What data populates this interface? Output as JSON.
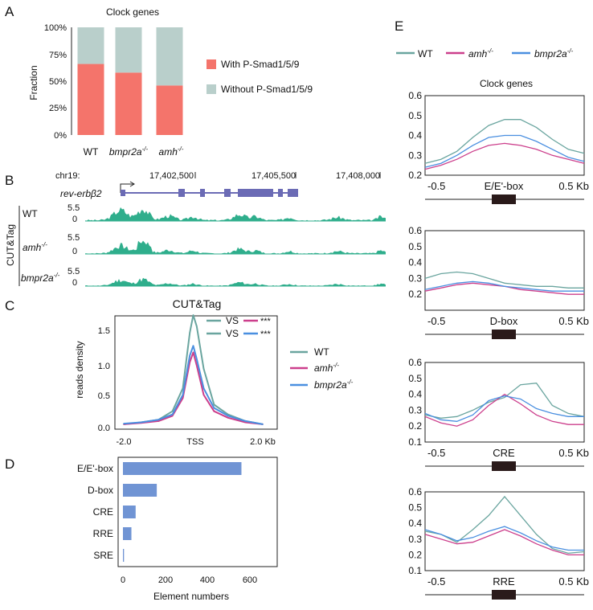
{
  "colors": {
    "wt": "#6aa59f",
    "amh": "#cc3f8c",
    "bmpr": "#4a8fe0",
    "with": "#f4746b",
    "without": "#b9cfcb",
    "cut": "#2fae8c",
    "gene": "#6b6bb5",
    "bar": "#7094d4"
  },
  "panelA": {
    "letter": "A",
    "title": "Clock genes",
    "ylabel": "Fraction",
    "yticks": [
      "0%",
      "25%",
      "50%",
      "75%",
      "100%"
    ],
    "categories": [
      "WT",
      "bmpr2a",
      "amh"
    ],
    "with_label": "With P-Smad1/5/9",
    "without_label": "Without P-Smad1/5/9"
  },
  "panelB": {
    "letter": "B",
    "chrom": "chr19:",
    "pos": [
      "17,402,500",
      "17,405,500",
      "17,408,000"
    ],
    "gene": "rev-erbβ2",
    "vertical": "CUT&Tag",
    "tracks": [
      {
        "label": "WT",
        "max": "5.5",
        "min": "0"
      },
      {
        "label": "amh",
        "max": "5.5",
        "min": "0"
      },
      {
        "label": "bmpr2a",
        "max": "5.5",
        "min": "0"
      }
    ]
  },
  "panelC": {
    "letter": "C",
    "title": "CUT&Tag",
    "ylabel": "reads density",
    "xticks": [
      "-2.0",
      "TSS",
      "2.0 Kb"
    ],
    "yticks": [
      "0.0",
      "0.5",
      "1.0",
      "1.5"
    ],
    "vs": "VS",
    "sig": "***",
    "legend": [
      "WT",
      "amh",
      "bmpr2a"
    ]
  },
  "panelD": {
    "letter": "D",
    "xlabel": "Element numbers",
    "xticks": [
      "0",
      "200",
      "400",
      "600"
    ]
  },
  "panelE": {
    "letter": "E",
    "legend": [
      "WT",
      "amh",
      "bmpr2a"
    ],
    "title": "Clock genes",
    "xleft": "-0.5",
    "xright": "0.5 Kb",
    "subs": [
      {
        "label": "E/E'-box",
        "yticks": [
          "0.2",
          "0.3",
          "0.4",
          "0.5",
          "0.6"
        ]
      },
      {
        "label": "D-box",
        "yticks": [
          "0.2",
          "0.3",
          "0.4",
          "0.5",
          "0.6"
        ]
      },
      {
        "label": "CRE",
        "yticks": [
          "0.1",
          "0.2",
          "0.3",
          "0.4",
          "0.5",
          "0.6"
        ]
      },
      {
        "label": "RRE",
        "yticks": [
          "0.1",
          "0.2",
          "0.3",
          "0.4",
          "0.5",
          "0.6"
        ]
      }
    ]
  },
  "chart_data": [
    {
      "type": "bar",
      "panel": "A",
      "title": "Clock genes",
      "ylabel": "Fraction",
      "categories": [
        "WT",
        "bmpr2a-/-",
        "amh-/-"
      ],
      "series": [
        {
          "name": "With P-Smad1/5/9",
          "values": [
            66,
            58,
            46
          ]
        },
        {
          "name": "Without P-Smad1/5/9",
          "values": [
            34,
            42,
            54
          ]
        }
      ],
      "ylim": [
        0,
        100
      ]
    },
    {
      "type": "line",
      "panel": "C",
      "title": "CUT&Tag",
      "ylabel": "reads density",
      "xlim": [
        -2.0,
        2.0
      ],
      "ylim": [
        0,
        1.75
      ],
      "x": [
        -2.0,
        -1.5,
        -1.0,
        -0.6,
        -0.3,
        -0.1,
        0.0,
        0.1,
        0.3,
        0.6,
        1.0,
        1.5,
        2.0
      ],
      "series": [
        {
          "name": "WT",
          "values": [
            0.05,
            0.08,
            0.12,
            0.25,
            0.6,
            1.45,
            1.72,
            1.55,
            0.9,
            0.35,
            0.2,
            0.1,
            0.05
          ]
        },
        {
          "name": "amh-/-",
          "values": [
            0.05,
            0.07,
            0.1,
            0.18,
            0.45,
            1.0,
            1.15,
            0.95,
            0.5,
            0.25,
            0.15,
            0.08,
            0.05
          ]
        },
        {
          "name": "bmpr2a-/-",
          "values": [
            0.06,
            0.08,
            0.12,
            0.2,
            0.5,
            1.1,
            1.25,
            1.05,
            0.6,
            0.3,
            0.18,
            0.1,
            0.05
          ]
        }
      ]
    },
    {
      "type": "bar",
      "panel": "D",
      "orientation": "horizontal",
      "xlabel": "Element numbers",
      "xlim": [
        0,
        700
      ],
      "categories": [
        "E/E'-box",
        "D-box",
        "CRE",
        "RRE",
        "SRE"
      ],
      "values": [
        560,
        160,
        60,
        40,
        5
      ]
    },
    {
      "type": "line",
      "panel": "E",
      "title": "E/E'-box",
      "ylim": [
        0.2,
        0.6
      ],
      "xlim": [
        -0.5,
        0.5
      ],
      "x": [
        -0.5,
        -0.4,
        -0.3,
        -0.2,
        -0.1,
        0,
        0.1,
        0.2,
        0.3,
        0.4,
        0.5
      ],
      "series": [
        {
          "name": "WT",
          "values": [
            0.26,
            0.28,
            0.32,
            0.39,
            0.45,
            0.48,
            0.48,
            0.44,
            0.38,
            0.33,
            0.31
          ]
        },
        {
          "name": "amh-/-",
          "values": [
            0.23,
            0.25,
            0.28,
            0.32,
            0.35,
            0.36,
            0.35,
            0.33,
            0.3,
            0.28,
            0.26
          ]
        },
        {
          "name": "bmpr2a-/-",
          "values": [
            0.24,
            0.26,
            0.3,
            0.35,
            0.39,
            0.4,
            0.4,
            0.37,
            0.33,
            0.29,
            0.27
          ]
        }
      ]
    },
    {
      "type": "line",
      "panel": "E",
      "title": "D-box",
      "ylim": [
        0.1,
        0.6
      ],
      "xlim": [
        -0.5,
        0.5
      ],
      "x": [
        -0.5,
        -0.4,
        -0.3,
        -0.2,
        -0.1,
        0,
        0.1,
        0.2,
        0.3,
        0.4,
        0.5
      ],
      "series": [
        {
          "name": "WT",
          "values": [
            0.3,
            0.33,
            0.34,
            0.33,
            0.3,
            0.27,
            0.26,
            0.25,
            0.25,
            0.24,
            0.24
          ]
        },
        {
          "name": "amh-/-",
          "values": [
            0.22,
            0.24,
            0.26,
            0.27,
            0.26,
            0.25,
            0.23,
            0.22,
            0.21,
            0.2,
            0.2
          ]
        },
        {
          "name": "bmpr2a-/-",
          "values": [
            0.23,
            0.25,
            0.27,
            0.28,
            0.27,
            0.25,
            0.24,
            0.23,
            0.22,
            0.22,
            0.22
          ]
        }
      ]
    },
    {
      "type": "line",
      "panel": "E",
      "title": "CRE",
      "ylim": [
        0.1,
        0.6
      ],
      "xlim": [
        -0.5,
        0.5
      ],
      "x": [
        -0.5,
        -0.4,
        -0.3,
        -0.2,
        -0.1,
        0,
        0.1,
        0.2,
        0.3,
        0.4,
        0.5
      ],
      "series": [
        {
          "name": "WT",
          "values": [
            0.27,
            0.25,
            0.26,
            0.3,
            0.35,
            0.38,
            0.46,
            0.47,
            0.33,
            0.28,
            0.26
          ]
        },
        {
          "name": "amh-/-",
          "values": [
            0.26,
            0.22,
            0.2,
            0.24,
            0.33,
            0.4,
            0.34,
            0.27,
            0.23,
            0.21,
            0.21
          ]
        },
        {
          "name": "bmpr2a-/-",
          "values": [
            0.28,
            0.24,
            0.23,
            0.27,
            0.36,
            0.39,
            0.37,
            0.31,
            0.28,
            0.26,
            0.26
          ]
        }
      ]
    },
    {
      "type": "line",
      "panel": "E",
      "title": "RRE",
      "ylim": [
        0.1,
        0.6
      ],
      "xlim": [
        -0.5,
        0.5
      ],
      "x": [
        -0.5,
        -0.4,
        -0.3,
        -0.2,
        -0.1,
        0,
        0.1,
        0.2,
        0.3,
        0.4,
        0.5
      ],
      "series": [
        {
          "name": "WT",
          "values": [
            0.35,
            0.33,
            0.28,
            0.36,
            0.45,
            0.57,
            0.45,
            0.33,
            0.24,
            0.21,
            0.22
          ]
        },
        {
          "name": "amh-/-",
          "values": [
            0.33,
            0.3,
            0.27,
            0.28,
            0.32,
            0.36,
            0.32,
            0.27,
            0.23,
            0.2,
            0.2
          ]
        },
        {
          "name": "bmpr2a-/-",
          "values": [
            0.36,
            0.33,
            0.29,
            0.31,
            0.35,
            0.38,
            0.34,
            0.29,
            0.25,
            0.23,
            0.23
          ]
        }
      ]
    }
  ]
}
